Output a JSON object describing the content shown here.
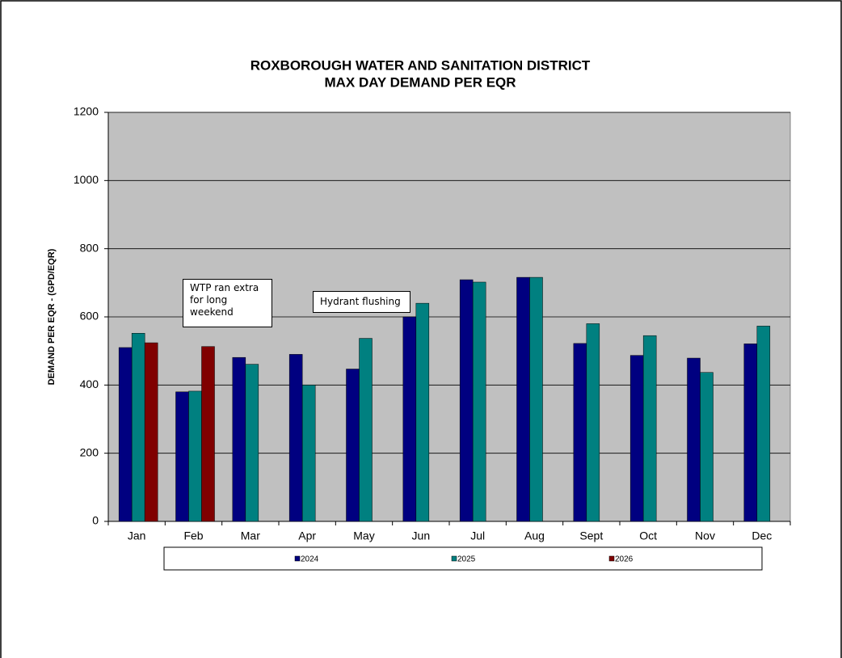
{
  "chart_data": {
    "type": "bar",
    "title": "ROXBOROUGH WATER AND SANITATION DISTRICT",
    "subtitle": "MAX DAY DEMAND PER EQR",
    "y_label": "DEMAND PER EQR - (GPD/EQR)",
    "categories": [
      "Jan",
      "Feb",
      "Mar",
      "Apr",
      "May",
      "Jun",
      "Jul",
      "Aug",
      "Sept",
      "Oct",
      "Nov",
      "Dec"
    ],
    "series": [
      {
        "name": "2024",
        "color": "#000080",
        "values": [
          510,
          380,
          481,
          490,
          447,
          600,
          709,
          716,
          522,
          487,
          479,
          521
        ]
      },
      {
        "name": "2025",
        "color": "#008080",
        "values": [
          552,
          382,
          461,
          400,
          537,
          640,
          702,
          716,
          580,
          545,
          437,
          573
        ]
      },
      {
        "name": "2026",
        "color": "#800000",
        "values": [
          524,
          513,
          null,
          null,
          null,
          null,
          null,
          null,
          null,
          null,
          null,
          null
        ]
      }
    ],
    "ylim": [
      0,
      1200
    ],
    "yticks": [
      0,
      200,
      400,
      600,
      800,
      1000,
      1200
    ],
    "grid": true,
    "annotations": [
      {
        "text": "WTP ran extra for long weekend"
      },
      {
        "text": "Hydrant flushing"
      }
    ]
  }
}
